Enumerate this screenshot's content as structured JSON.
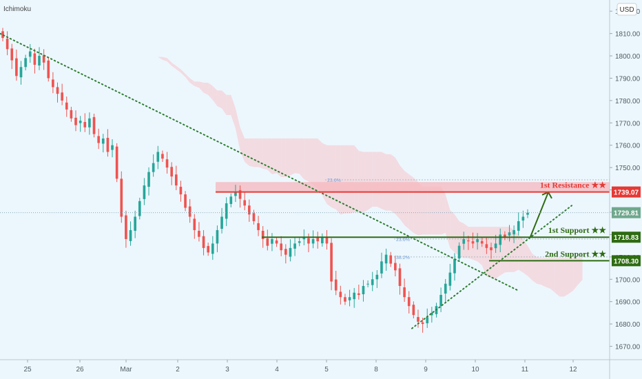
{
  "header": {
    "indicator_label": "Ichimoku",
    "currency_label": "USD"
  },
  "colors": {
    "background": "#ecf7fd",
    "bull_candle": "#26a69a",
    "bear_candle": "#ef5350",
    "trendline": "#2e7d32",
    "resistance": "#e53935",
    "resistance_zone": "#f5b7bc",
    "support": "#2e6b12",
    "cloud_bear": "#f3d6dc",
    "cloud_bull": "#cdeedd",
    "fib": "#7aa0d8"
  },
  "chart_data": {
    "type": "candlestick",
    "title": "",
    "xlabel": "",
    "ylabel": "",
    "ylim": [
      1664,
      1825
    ],
    "y_ticks": [
      1670,
      1680,
      1690,
      1700,
      1710,
      1720,
      1730,
      1740,
      1750,
      1760,
      1770,
      1780,
      1790,
      1800,
      1810,
      1820
    ],
    "x_ticks": [
      "25",
      "26",
      "Mar",
      "2",
      "3",
      "4",
      "5",
      "8",
      "9",
      "10",
      "11",
      "12"
    ],
    "grid": false,
    "levels": [
      {
        "name": "1st Resistance ★★",
        "value": 1739.07,
        "zone_top": 1743.5,
        "color": "#e53935"
      },
      {
        "name": "1st Support ★★",
        "value": 1718.83,
        "color": "#2e6b12"
      },
      {
        "name": "2nd Support ★★",
        "value": 1708.3,
        "color": "#2e6b12"
      }
    ],
    "last_price": 1729.81,
    "fib_levels": [
      {
        "label": "23.6%",
        "value": 1744.5
      },
      {
        "label": "23.6%",
        "value": 1718.0
      },
      {
        "label": "38.2%",
        "value": 1710.0
      }
    ],
    "trendlines": [
      {
        "style": "dotted",
        "from": [
          "25",
          1810
        ],
        "to": [
          "11",
          1695
        ]
      },
      {
        "style": "dotted",
        "from": [
          "9",
          1678
        ],
        "to": [
          "12",
          1733
        ]
      }
    ],
    "projection_arrow": {
      "from": [
        "11",
        1719
      ],
      "to": [
        "11",
        1739
      ]
    },
    "closes": [
      1808,
      1803,
      1798,
      1791,
      1795,
      1799,
      1802,
      1796,
      1800,
      1797,
      1790,
      1786,
      1783,
      1780,
      1776,
      1772,
      1769,
      1771,
      1768,
      1772,
      1765,
      1761,
      1763,
      1757,
      1760,
      1745,
      1728,
      1718,
      1722,
      1728,
      1735,
      1742,
      1748,
      1752,
      1757,
      1754,
      1750,
      1746,
      1742,
      1738,
      1732,
      1728,
      1722,
      1719,
      1714,
      1712,
      1716,
      1722,
      1728,
      1734,
      1737,
      1739,
      1736,
      1733,
      1729,
      1726,
      1722,
      1718,
      1715,
      1718,
      1716,
      1713,
      1711,
      1714,
      1716,
      1717,
      1719,
      1716,
      1718,
      1717,
      1719,
      1716,
      1699,
      1695,
      1692,
      1690,
      1692,
      1694,
      1693,
      1697,
      1698,
      1700,
      1702,
      1708,
      1711,
      1707,
      1704,
      1697,
      1692,
      1688,
      1684,
      1681,
      1680,
      1683,
      1685,
      1688,
      1693,
      1698,
      1703,
      1709,
      1715,
      1718,
      1717,
      1716,
      1718,
      1716,
      1714,
      1713,
      1716,
      1720,
      1719,
      1721,
      1722,
      1726,
      1728,
      1729.81
    ]
  }
}
